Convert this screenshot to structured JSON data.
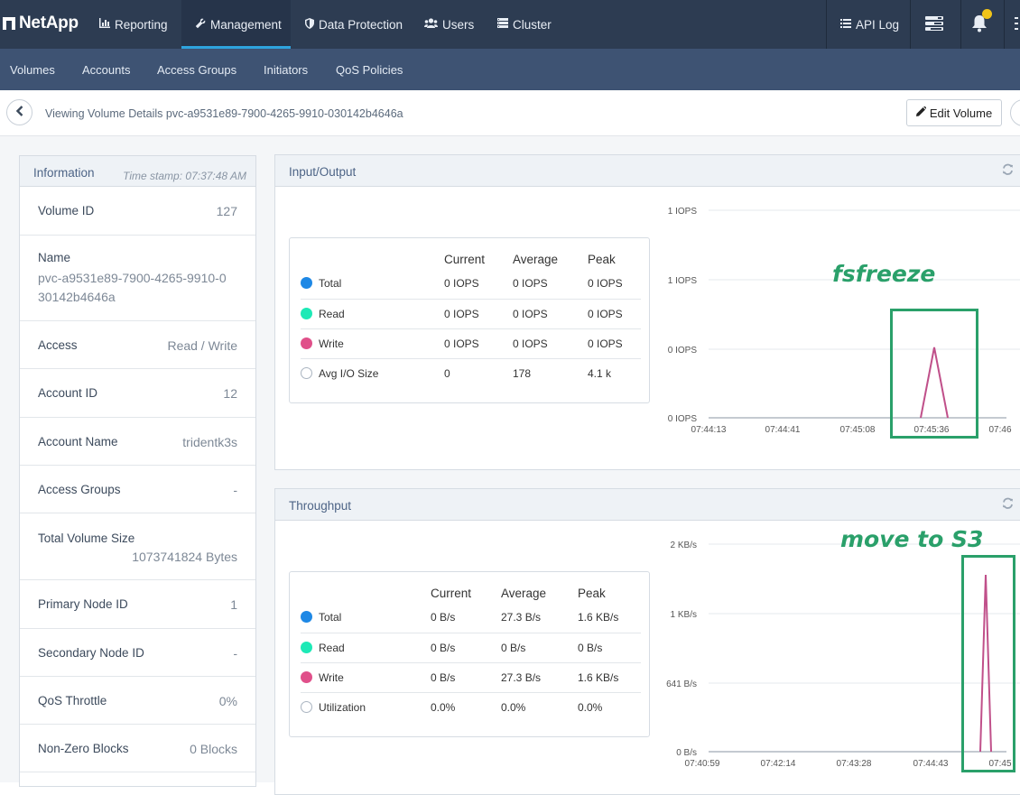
{
  "header": {
    "brand": "NetApp",
    "nav": [
      {
        "label": "Reporting",
        "icon": "bar-chart-icon"
      },
      {
        "label": "Management",
        "icon": "wrench-icon",
        "active": true
      },
      {
        "label": "Data Protection",
        "icon": "shield-icon"
      },
      {
        "label": "Users",
        "icon": "users-icon"
      },
      {
        "label": "Cluster",
        "icon": "server-icon"
      }
    ],
    "api_log": "API Log",
    "accent_color": "#2ea3dd",
    "notification_badge_color": "#f0c419"
  },
  "subnav": [
    "Volumes",
    "Accounts",
    "Access Groups",
    "Initiators",
    "QoS Policies"
  ],
  "breadcrumb": {
    "text": "Viewing Volume Details pvc-a9531e89-7900-4265-9910-030142b4646a",
    "edit_button": "Edit Volume"
  },
  "information": {
    "title": "Information",
    "timestamp": "Time stamp: 07:37:48 AM",
    "rows": [
      {
        "label": "Volume ID",
        "value": "127"
      },
      {
        "label": "Name",
        "value": "pvc-a9531e89-7900-4265-9910-030142b4646a"
      },
      {
        "label": "Access",
        "value": "Read / Write"
      },
      {
        "label": "Account ID",
        "value": "12"
      },
      {
        "label": "Account Name",
        "value": "tridentk3s"
      },
      {
        "label": "Access Groups",
        "value": "-"
      },
      {
        "label": "Total Volume Size",
        "value": "1073741824 Bytes"
      },
      {
        "label": "Primary Node ID",
        "value": "1"
      },
      {
        "label": "Secondary Node ID",
        "value": "-"
      },
      {
        "label": "QoS Throttle",
        "value": "0%"
      },
      {
        "label": "Non-Zero Blocks",
        "value": "0 Blocks"
      }
    ]
  },
  "io": {
    "title": "Input/Output",
    "columns": [
      "Current",
      "Average",
      "Peak"
    ],
    "rows": [
      {
        "name": "Total",
        "color": "#1e88e5",
        "current": "0 IOPS",
        "average": "0 IOPS",
        "peak": "0 IOPS"
      },
      {
        "name": "Read",
        "color": "#1de9b6",
        "current": "0 IOPS",
        "average": "0 IOPS",
        "peak": "0 IOPS"
      },
      {
        "name": "Write",
        "color": "#e0508a",
        "current": "0 IOPS",
        "average": "0 IOPS",
        "peak": "0 IOPS"
      },
      {
        "name": "Avg I/O Size",
        "color": "none",
        "current": "0",
        "average": "178",
        "peak": "4.1 k"
      }
    ],
    "annotation": "fsfreeze"
  },
  "throughput": {
    "title": "Throughput",
    "columns": [
      "Current",
      "Average",
      "Peak"
    ],
    "rows": [
      {
        "name": "Total",
        "color": "#1e88e5",
        "current": "0 B/s",
        "average": "27.3 B/s",
        "peak": "1.6 KB/s"
      },
      {
        "name": "Read",
        "color": "#1de9b6",
        "current": "0 B/s",
        "average": "0 B/s",
        "peak": "0 B/s"
      },
      {
        "name": "Write",
        "color": "#e0508a",
        "current": "0 B/s",
        "average": "27.3 B/s",
        "peak": "1.6 KB/s"
      },
      {
        "name": "Utilization",
        "color": "none",
        "current": "0.0%",
        "average": "0.0%",
        "peak": "0.0%"
      }
    ],
    "annotation": "move to S3"
  },
  "chart_data": [
    {
      "type": "line",
      "title": "Input/Output",
      "y_ticks": [
        "0 IOPS",
        "0 IOPS",
        "1 IOPS",
        "1 IOPS"
      ],
      "x_ticks": [
        "07:44:13",
        "07:44:41",
        "07:45:08",
        "07:45:36",
        "07:46"
      ],
      "ylim": [
        0,
        1.5
      ],
      "grid": true,
      "series": [
        {
          "name": "Total",
          "color": "#1e88e5",
          "points": [
            [
              "07:44:00",
              0
            ],
            [
              "07:46:10",
              0
            ]
          ]
        },
        {
          "name": "Write",
          "color": "#c0508a",
          "points": [
            [
              "07:45:25",
              0
            ],
            [
              "07:45:32",
              0.5
            ],
            [
              "07:45:39",
              0
            ]
          ]
        }
      ]
    },
    {
      "type": "line",
      "title": "Throughput",
      "y_ticks": [
        "0 B/s",
        "641 B/s",
        "1 KB/s",
        "2 KB/s"
      ],
      "x_ticks": [
        "07:40:59",
        "07:42:14",
        "07:43:28",
        "07:44:43",
        "07:45"
      ],
      "ylim": [
        0,
        2000
      ],
      "grid": true,
      "series": [
        {
          "name": "Total",
          "color": "#1e88e5",
          "points": [
            [
              "07:40:30",
              0
            ],
            [
              "07:45:50",
              0
            ]
          ]
        },
        {
          "name": "Write",
          "color": "#c0508a",
          "points": [
            [
              "07:45:20",
              0
            ],
            [
              "07:45:29",
              1600
            ],
            [
              "07:45:38",
              0
            ]
          ]
        }
      ]
    }
  ]
}
